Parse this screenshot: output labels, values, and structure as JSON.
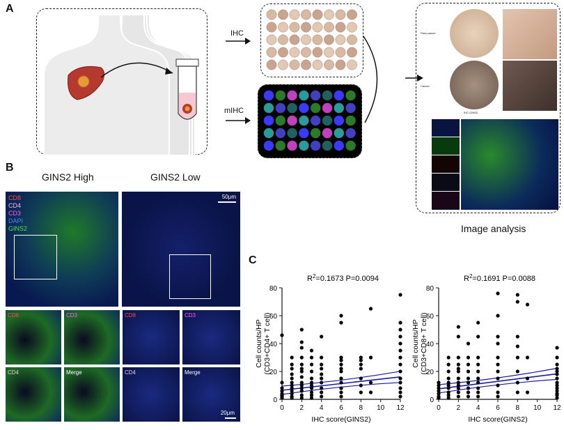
{
  "panel_letters": {
    "a": "A",
    "b": "B",
    "c": "C"
  },
  "panel_a": {
    "ihc_label": "IHC",
    "mihc_label": "mIHC",
    "image_analysis_label": "Image analysis",
    "para_cancer_label": "Para-cancer",
    "cancer_label": "Cancer",
    "ihc_gins2_label": "IHC-GINS2",
    "colors": {
      "liver": "#b5392e",
      "tumor": "#e59a3a",
      "tube_fill": "#f6c9d2",
      "body": "#ececec"
    }
  },
  "panel_b": {
    "high_title": "GINS2 High",
    "low_title": "GINS2 Low",
    "legend": [
      {
        "text": "CD8",
        "color": "#ff4a4a"
      },
      {
        "text": "CD4",
        "color": "#e9c0e8"
      },
      {
        "text": "CD3",
        "color": "#ff5cff"
      },
      {
        "text": "DAPI",
        "color": "#5a7dff"
      },
      {
        "text": "GINS2",
        "color": "#55e055"
      }
    ],
    "scale_top": "50μm",
    "scale_bottom": "20μm",
    "zoom_labels": {
      "cd8": "CD8",
      "cd3": "CD3",
      "cd4": "CD4",
      "merge": "Merge"
    }
  },
  "chart_data": [
    {
      "type": "scatter",
      "annotation": "R²=0.1673   P=0.0094",
      "r2_prefix": "R",
      "r2_sup": "2",
      "r2_value": "=0.1673",
      "p_value": "P=0.0094",
      "xlabel": "IHC score(GINS2)",
      "ylabel_line1": "Cell counts/HP",
      "ylabel_line2": "(CD3+CD4+ T cell)",
      "xlim": [
        0,
        12
      ],
      "ylim": [
        0,
        80
      ],
      "xticks": [
        0,
        2,
        4,
        6,
        8,
        10,
        12
      ],
      "yticks": [
        0,
        20,
        40,
        60,
        80
      ],
      "regression": {
        "intercept": 6.5,
        "slope": 0.8
      },
      "x": [
        0,
        0,
        0,
        0,
        0,
        0,
        0,
        0,
        1,
        1,
        1,
        1,
        1,
        1,
        1,
        1,
        1,
        1,
        1,
        1,
        2,
        2,
        2,
        2,
        2,
        2,
        2,
        2,
        2,
        2,
        2,
        2,
        2,
        2,
        3,
        3,
        3,
        3,
        3,
        3,
        3,
        3,
        3,
        3,
        3,
        4,
        4,
        4,
        4,
        4,
        4,
        4,
        4,
        4,
        4,
        6,
        6,
        6,
        6,
        6,
        6,
        6,
        6,
        6,
        6,
        6,
        6,
        8,
        8,
        8,
        8,
        8,
        8,
        8,
        9,
        9,
        9,
        9,
        12,
        12,
        12,
        12,
        12,
        12,
        12,
        12,
        12,
        12,
        12,
        12,
        12,
        12
      ],
      "y": [
        46,
        12,
        8,
        6,
        4,
        3,
        2,
        1,
        30,
        25,
        22,
        18,
        15,
        12,
        10,
        8,
        6,
        4,
        2,
        1,
        50,
        41,
        37,
        30,
        25,
        22,
        20,
        16,
        12,
        10,
        8,
        6,
        3,
        1,
        35,
        30,
        25,
        20,
        15,
        12,
        10,
        8,
        5,
        3,
        1,
        45,
        30,
        25,
        22,
        18,
        15,
        12,
        8,
        5,
        2,
        60,
        55,
        30,
        28,
        25,
        22,
        20,
        15,
        12,
        8,
        5,
        2,
        30,
        28,
        25,
        22,
        15,
        10,
        5,
        65,
        30,
        12,
        5,
        75,
        55,
        50,
        45,
        40,
        35,
        30,
        25,
        20,
        15,
        12,
        8,
        5,
        2
      ]
    },
    {
      "type": "scatter",
      "annotation": "R²=0.1691   P=0.0088",
      "r2_prefix": "R",
      "r2_sup": "2",
      "r2_value": "=0.1691",
      "p_value": "P=0.0088",
      "xlabel": "IHC score(GINS2)",
      "ylabel_line1": "Cell counts/HP",
      "ylabel_line2": "(CD3+CD8+ T cell)",
      "xlim": [
        0,
        12
      ],
      "ylim": [
        0,
        80
      ],
      "xticks": [
        0,
        2,
        4,
        6,
        8,
        10,
        12
      ],
      "yticks": [
        0,
        20,
        40,
        60,
        80
      ],
      "regression": {
        "intercept": 7.5,
        "slope": 0.9
      },
      "x": [
        0,
        0,
        0,
        0,
        0,
        0,
        0,
        1,
        1,
        1,
        1,
        1,
        1,
        1,
        1,
        1,
        1,
        2,
        2,
        2,
        2,
        2,
        2,
        2,
        2,
        2,
        2,
        2,
        2,
        3,
        3,
        3,
        3,
        3,
        3,
        3,
        3,
        3,
        4,
        4,
        4,
        4,
        4,
        4,
        4,
        4,
        4,
        4,
        6,
        6,
        6,
        6,
        6,
        6,
        6,
        6,
        6,
        6,
        6,
        8,
        8,
        8,
        8,
        8,
        8,
        8,
        8,
        9,
        9,
        9,
        9,
        12,
        12,
        12,
        12,
        12,
        12,
        12,
        12,
        12,
        12,
        12,
        12,
        12,
        12
      ],
      "y": [
        12,
        10,
        8,
        6,
        4,
        2,
        1,
        30,
        25,
        20,
        15,
        12,
        10,
        8,
        5,
        3,
        1,
        52,
        45,
        30,
        25,
        22,
        20,
        15,
        12,
        10,
        8,
        5,
        2,
        40,
        30,
        25,
        20,
        15,
        12,
        8,
        5,
        2,
        55,
        45,
        30,
        25,
        20,
        15,
        12,
        8,
        5,
        2,
        76,
        60,
        45,
        40,
        30,
        25,
        20,
        15,
        10,
        5,
        2,
        75,
        70,
        45,
        38,
        30,
        20,
        12,
        5,
        68,
        30,
        15,
        5,
        37,
        30,
        25,
        22,
        20,
        18,
        15,
        12,
        10,
        8,
        6,
        4,
        3,
        1
      ]
    }
  ]
}
